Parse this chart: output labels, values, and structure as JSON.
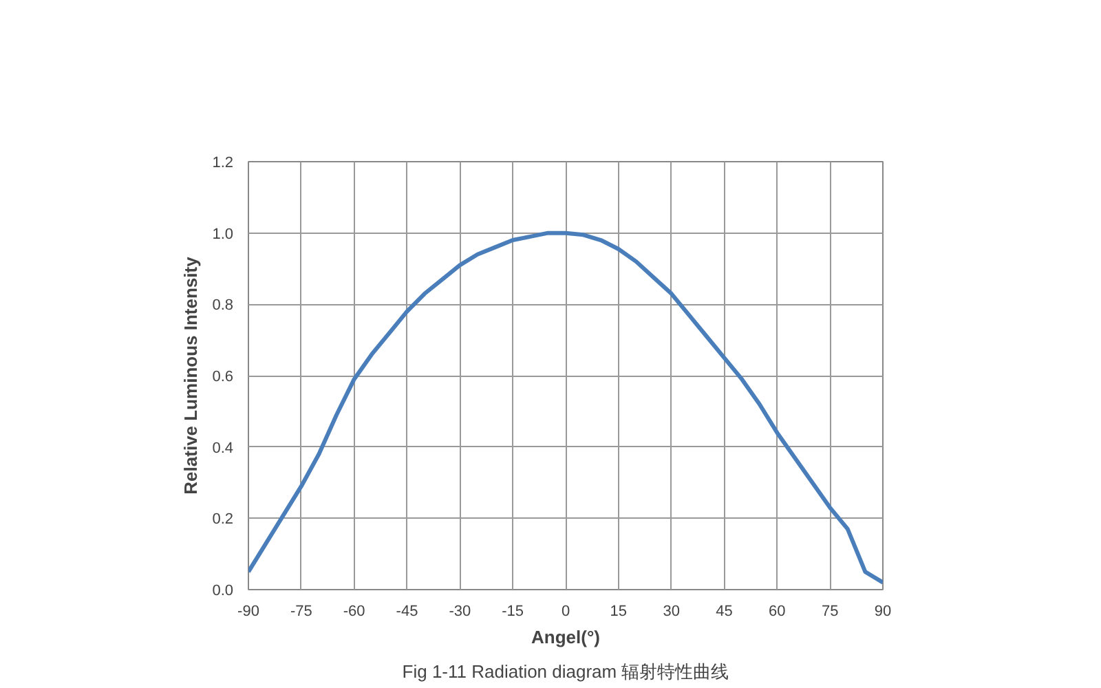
{
  "chart_data": {
    "type": "line",
    "title": "Fig 1-11 Radiation diagram 辐射特性曲线",
    "xlabel": "Angel(°)",
    "ylabel": "Relative Luminous Intensity",
    "x": [
      -90,
      -85,
      -80,
      -75,
      -70,
      -65,
      -60,
      -55,
      -50,
      -45,
      -40,
      -35,
      -30,
      -25,
      -20,
      -15,
      -10,
      -5,
      0,
      5,
      10,
      15,
      20,
      25,
      30,
      35,
      40,
      45,
      50,
      55,
      60,
      65,
      70,
      75,
      80,
      85,
      90
    ],
    "series": [
      {
        "color": "#4a7ebb",
        "values": [
          0.05,
          0.13,
          0.21,
          0.29,
          0.38,
          0.49,
          0.59,
          0.66,
          0.72,
          0.78,
          0.83,
          0.87,
          0.91,
          0.94,
          0.96,
          0.98,
          0.99,
          1.0,
          1.0,
          0.995,
          0.98,
          0.955,
          0.92,
          0.875,
          0.83,
          0.77,
          0.71,
          0.65,
          0.59,
          0.52,
          0.44,
          0.37,
          0.3,
          0.23,
          0.17,
          0.05,
          0.02
        ]
      }
    ],
    "xlim": [
      -90,
      90
    ],
    "ylim": [
      0,
      1.2
    ],
    "xticks": [
      -90,
      -75,
      -60,
      -45,
      -30,
      -15,
      0,
      15,
      30,
      45,
      60,
      75,
      90
    ],
    "yticks": [
      {
        "value": 0,
        "label": "0.0"
      },
      {
        "value": 0.2,
        "label": "0.2"
      },
      {
        "value": 0.4,
        "label": "0.4"
      },
      {
        "value": 0.6,
        "label": "0.6"
      },
      {
        "value": 0.8,
        "label": "0.8"
      },
      {
        "value": 1.0,
        "label": "1.0"
      },
      {
        "value": 1.2,
        "label": "1.2"
      }
    ],
    "grid": true,
    "marker": "none",
    "line_style": "solid"
  }
}
